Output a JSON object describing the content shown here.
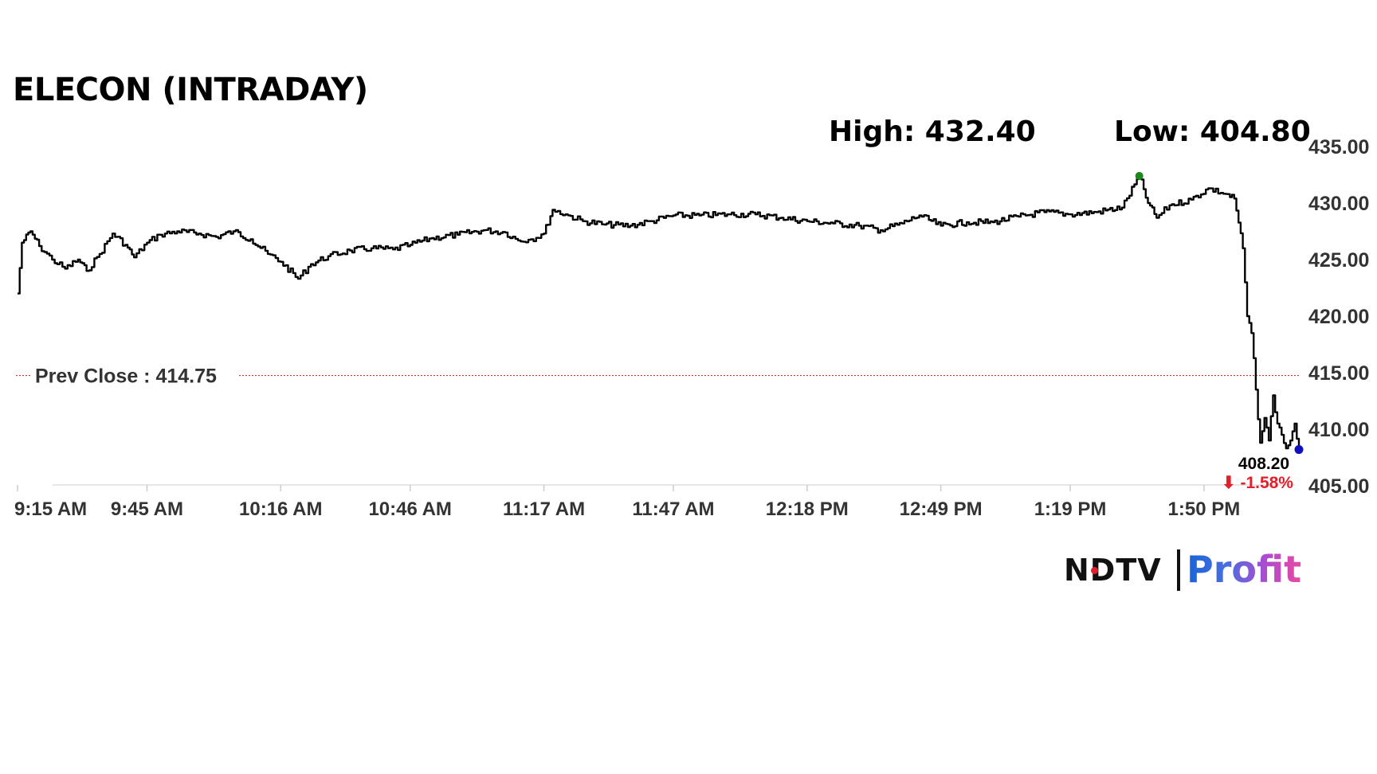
{
  "header": {
    "title": "ELECON (INTRADAY)",
    "high_label": "High: 432.40",
    "low_label": "Low: 404.80"
  },
  "prev_close_label": "Prev Close : 414.75",
  "last": {
    "price_label": "408.20",
    "change_label": "⬇ -1.58%"
  },
  "logo": {
    "ndtv": "NDTV",
    "profit": "Profit"
  },
  "colors": {
    "line": "#000000",
    "prev_close": "#c0392b",
    "high_dot": "#1a8a1a",
    "last_dot": "#1010c0",
    "change": "#e0202a"
  },
  "chart_data": {
    "type": "line",
    "title": "ELECON (INTRADAY)",
    "xlabel": "",
    "ylabel": "",
    "x_ticks": [
      "9:15 AM",
      "9:45 AM",
      "10:16 AM",
      "10:46 AM",
      "11:17 AM",
      "11:47 AM",
      "12:18 PM",
      "12:49 PM",
      "1:19 PM",
      "1:50 PM"
    ],
    "y_ticks": [
      "435.00",
      "430.00",
      "425.00",
      "420.00",
      "415.00",
      "410.00",
      "405.00"
    ],
    "ylim": [
      405,
      435
    ],
    "xlim": [
      "9:15 AM",
      "2:12 PM"
    ],
    "prev_close": 414.75,
    "high": 432.4,
    "low": 404.8,
    "last": 408.2,
    "change_pct": -1.58,
    "series": [
      {
        "points": [
          [
            "9:15 AM",
            422.0
          ],
          [
            "9:16 AM",
            426.5
          ],
          [
            "9:18 AM",
            427.5
          ],
          [
            "9:20 AM",
            426.2
          ],
          [
            "9:23 AM",
            425.0
          ],
          [
            "9:26 AM",
            424.2
          ],
          [
            "9:29 AM",
            425.0
          ],
          [
            "9:31 AM",
            424.0
          ],
          [
            "9:34 AM",
            425.5
          ],
          [
            "9:37 AM",
            427.3
          ],
          [
            "9:40 AM",
            426.3
          ],
          [
            "9:42 AM",
            425.2
          ],
          [
            "9:45 AM",
            426.5
          ],
          [
            "9:48 AM",
            427.2
          ],
          [
            "9:52 AM",
            427.5
          ],
          [
            "9:57 AM",
            427.3
          ],
          [
            "10:01 AM",
            427.0
          ],
          [
            "10:05 AM",
            427.5
          ],
          [
            "10:09 AM",
            426.8
          ],
          [
            "10:13 AM",
            425.5
          ],
          [
            "10:16 AM",
            424.8
          ],
          [
            "10:20 AM",
            423.3
          ],
          [
            "10:23 AM",
            424.6
          ],
          [
            "10:27 AM",
            425.3
          ],
          [
            "10:32 AM",
            425.8
          ],
          [
            "10:37 AM",
            426.0
          ],
          [
            "10:42 AM",
            425.9
          ],
          [
            "10:46 AM",
            426.3
          ],
          [
            "10:51 AM",
            426.9
          ],
          [
            "10:57 AM",
            427.2
          ],
          [
            "11:03 AM",
            427.6
          ],
          [
            "11:08 AM",
            427.4
          ],
          [
            "11:11 AM",
            426.7
          ],
          [
            "11:14 AM",
            426.8
          ],
          [
            "11:17 AM",
            427.3
          ],
          [
            "11:19 AM",
            429.4
          ],
          [
            "11:22 AM",
            429.0
          ],
          [
            "11:26 AM",
            428.4
          ],
          [
            "11:31 AM",
            428.1
          ],
          [
            "11:37 AM",
            428.0
          ],
          [
            "11:42 AM",
            428.4
          ],
          [
            "11:47 AM",
            428.9
          ],
          [
            "11:53 AM",
            428.9
          ],
          [
            "12:00 PM",
            429.0
          ],
          [
            "12:06 PM",
            429.0
          ],
          [
            "12:12 PM",
            428.7
          ],
          [
            "12:18 PM",
            428.4
          ],
          [
            "12:24 PM",
            428.2
          ],
          [
            "12:30 PM",
            428.0
          ],
          [
            "12:35 PM",
            427.6
          ],
          [
            "12:40 PM",
            428.2
          ],
          [
            "12:44 PM",
            428.9
          ],
          [
            "12:49 PM",
            428.0
          ],
          [
            "12:55 PM",
            428.3
          ],
          [
            "1:01 PM",
            428.3
          ],
          [
            "1:07 PM",
            428.8
          ],
          [
            "1:13 PM",
            429.2
          ],
          [
            "1:19 PM",
            429.0
          ],
          [
            "1:25 PM",
            429.2
          ],
          [
            "1:31 PM",
            429.6
          ],
          [
            "1:35 PM",
            432.4
          ],
          [
            "1:37 PM",
            430.0
          ],
          [
            "1:39 PM",
            428.7
          ],
          [
            "1:42 PM",
            429.8
          ],
          [
            "1:47 PM",
            430.3
          ],
          [
            "1:51 PM",
            431.3
          ],
          [
            "1:55 PM",
            430.8
          ],
          [
            "1:57 PM",
            430.4
          ],
          [
            "1:59 PM",
            426.0
          ],
          [
            "2:00 PM",
            420.0
          ],
          [
            "2:01 PM",
            418.5
          ],
          [
            "2:02 PM",
            413.5
          ],
          [
            "2:03 PM",
            408.8
          ],
          [
            "2:04 PM",
            411.0
          ],
          [
            "2:05 PM",
            409.0
          ],
          [
            "2:06 PM",
            413.0
          ],
          [
            "2:07 PM",
            410.5
          ],
          [
            "2:08 PM",
            409.5
          ],
          [
            "2:09 PM",
            408.3
          ],
          [
            "2:10 PM",
            409.0
          ],
          [
            "2:11 PM",
            410.5
          ],
          [
            "2:12 PM",
            408.2
          ]
        ]
      }
    ],
    "legend": "none",
    "grid": false
  }
}
